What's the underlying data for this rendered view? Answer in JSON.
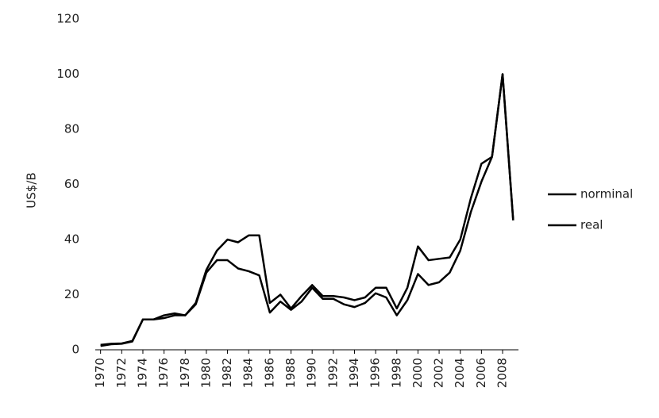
{
  "chart_data": {
    "type": "line",
    "y_label": "US$/B",
    "x": [
      1970,
      1971,
      1972,
      1973,
      1974,
      1975,
      1976,
      1977,
      1978,
      1979,
      1980,
      1981,
      1982,
      1983,
      1984,
      1985,
      1986,
      1987,
      1988,
      1989,
      1990,
      1991,
      1992,
      1993,
      1994,
      1995,
      1996,
      1997,
      1998,
      1999,
      2000,
      2001,
      2002,
      2003,
      2004,
      2005,
      2006,
      2007,
      2008,
      2009
    ],
    "xlim": [
      1969.5,
      2009.5
    ],
    "xticks": [
      1970,
      1972,
      1974,
      1976,
      1978,
      1980,
      1982,
      1984,
      1986,
      1988,
      1990,
      1992,
      1994,
      1996,
      1998,
      2000,
      2002,
      2004,
      2006,
      2008
    ],
    "ylim": [
      0,
      120
    ],
    "yticks": [
      0,
      20,
      40,
      60,
      80,
      100,
      120
    ],
    "grid": false,
    "legend": "right",
    "series": [
      {
        "name": "norminal",
        "color": "#000000",
        "values": [
          1.4,
          2,
          2.2,
          3,
          11,
          11,
          11.5,
          12.5,
          12.5,
          16.5,
          28,
          32.5,
          32.5,
          29.5,
          28.5,
          27,
          13.5,
          17.5,
          14.5,
          17.5,
          22.5,
          18.5,
          18.5,
          16.5,
          15.5,
          17,
          20.5,
          19,
          12.5,
          18,
          27.5,
          23.5,
          24.5,
          28,
          36,
          50,
          61,
          70,
          100,
          47
        ]
      },
      {
        "name": "real",
        "color": "#000000",
        "values": [
          1.8,
          2.2,
          2.3,
          3.2,
          11,
          11,
          12.5,
          13.2,
          12.5,
          17,
          29,
          36,
          40,
          39,
          41.5,
          41.5,
          17,
          20,
          15,
          19.5,
          23.5,
          19.5,
          19.5,
          19,
          18,
          19,
          22.5,
          22.5,
          15,
          22.5,
          37.5,
          32.5,
          33,
          33.5,
          40,
          55,
          67.5,
          70,
          100,
          47
        ]
      }
    ]
  }
}
